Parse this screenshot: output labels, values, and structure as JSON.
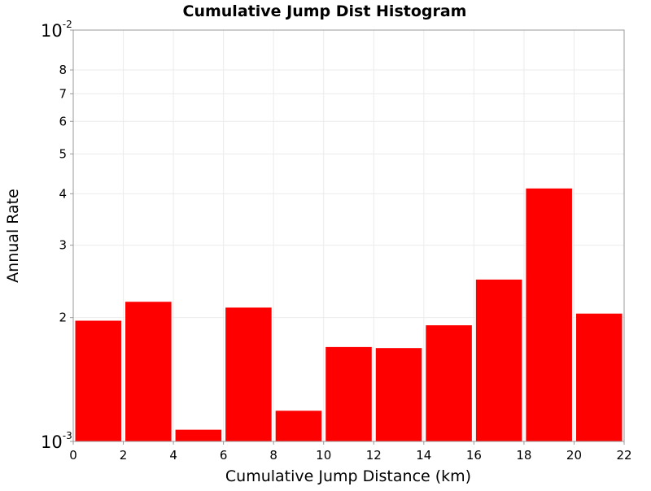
{
  "chart_data": {
    "type": "bar",
    "title": "Cumulative Jump Dist Histogram",
    "xlabel": "Cumulative Jump Distance (km)",
    "ylabel": "Annual Rate",
    "x_scale": "linear",
    "y_scale": "log",
    "xlim": [
      0,
      22
    ],
    "ylim": [
      0.001,
      0.01
    ],
    "bar_color": "#ff0000",
    "grid": true,
    "x_ticks": [
      "0",
      "2",
      "4",
      "6",
      "8",
      "10",
      "12",
      "14",
      "16",
      "18",
      "20",
      "22"
    ],
    "y_tick_labels": [
      {
        "value": 0.001,
        "label": "10",
        "exp": "-3"
      },
      {
        "value": 0.002,
        "label": "2"
      },
      {
        "value": 0.003,
        "label": "3"
      },
      {
        "value": 0.004,
        "label": "4"
      },
      {
        "value": 0.005,
        "label": "5"
      },
      {
        "value": 0.006,
        "label": "6"
      },
      {
        "value": 0.007,
        "label": "7"
      },
      {
        "value": 0.008,
        "label": "8"
      },
      {
        "value": 0.01,
        "label": "10",
        "exp": "-2"
      }
    ],
    "bins": [
      {
        "x0": 0,
        "x1": 2,
        "value": 0.00197
      },
      {
        "x0": 2,
        "x1": 4,
        "value": 0.00219
      },
      {
        "x0": 4,
        "x1": 6,
        "value": 0.00107
      },
      {
        "x0": 6,
        "x1": 8,
        "value": 0.00212
      },
      {
        "x0": 8,
        "x1": 10,
        "value": 0.00119
      },
      {
        "x0": 10,
        "x1": 12,
        "value": 0.0017
      },
      {
        "x0": 12,
        "x1": 14,
        "value": 0.00169
      },
      {
        "x0": 14,
        "x1": 16,
        "value": 0.00192
      },
      {
        "x0": 16,
        "x1": 18,
        "value": 0.00248
      },
      {
        "x0": 18,
        "x1": 20,
        "value": 0.00413
      },
      {
        "x0": 20,
        "x1": 22,
        "value": 0.00205
      }
    ]
  }
}
